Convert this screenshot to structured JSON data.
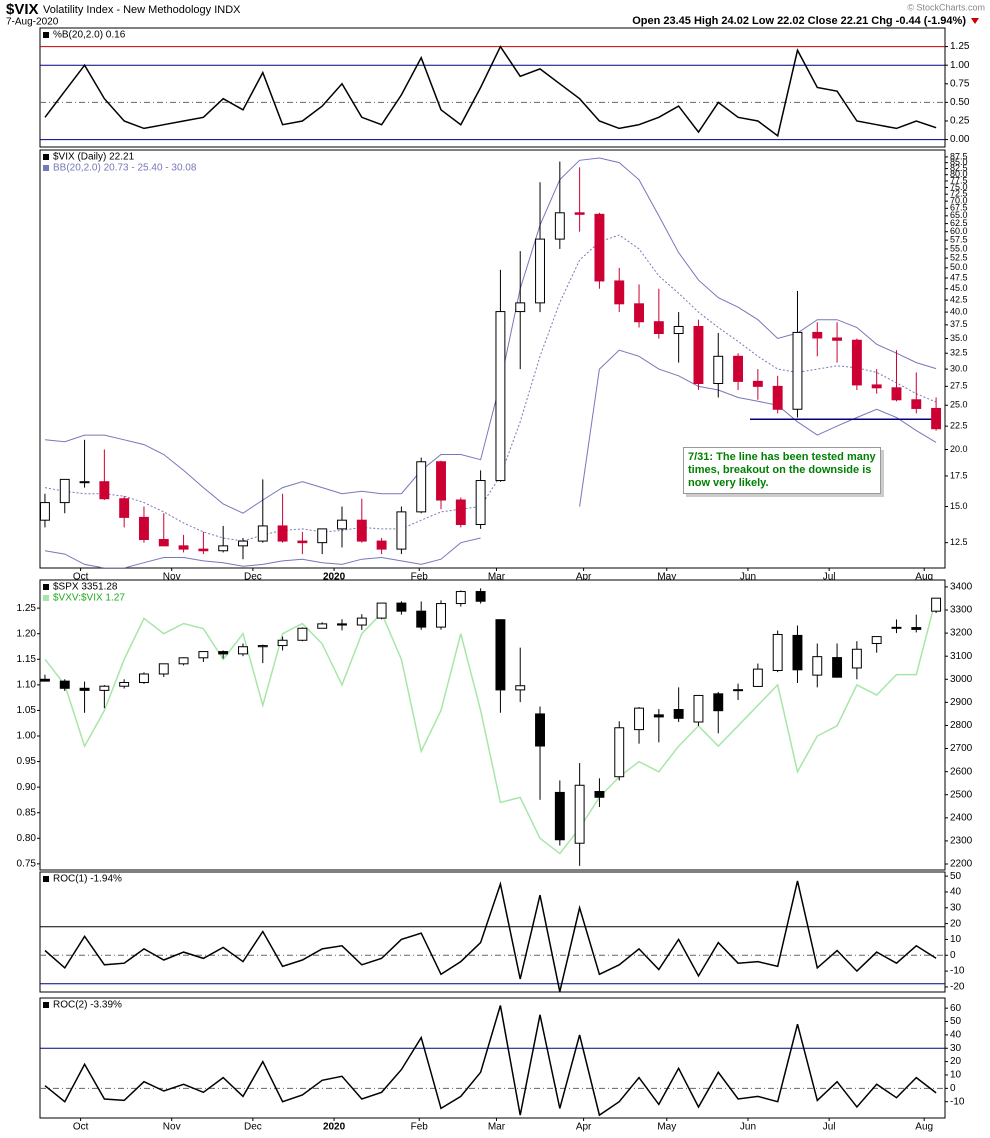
{
  "symbol": "$VIX",
  "title": "Volatility Index - New Methodology INDX",
  "date": "7-Aug-2020",
  "quote": "Open 23.45  High 24.02  Low 22.02  Close 22.21  Chg -0.44 (-1.94%)",
  "credit": "© StockCharts.com",
  "chart_data": [
    {
      "type": "line",
      "legend": [
        "%B(20,2.0) 0.16"
      ],
      "color": "#000000",
      "values": [
        0.3,
        0.65,
        1.0,
        0.55,
        0.25,
        0.15,
        0.2,
        0.25,
        0.3,
        0.55,
        0.4,
        0.9,
        0.2,
        0.25,
        0.45,
        0.75,
        0.3,
        0.2,
        0.6,
        1.1,
        0.4,
        0.2,
        0.7,
        1.25,
        0.85,
        0.95,
        0.75,
        0.55,
        0.25,
        0.15,
        0.2,
        0.3,
        0.45,
        0.1,
        0.5,
        0.3,
        0.25,
        0.05,
        1.2,
        0.7,
        0.65,
        0.25,
        0.2,
        0.15,
        0.25,
        0.16
      ],
      "xlim": [
        -0.25,
        45.45
      ],
      "ylim": [
        -0.1,
        1.5
      ],
      "yticks": [
        {
          "value": 0,
          "label": "0.00"
        },
        0.25,
        {
          "value": 0.5,
          "label": "0.50"
        },
        0.75,
        {
          "value": 1,
          "label": "1.00"
        },
        1.25
      ],
      "hlines": [
        {
          "value": 1.25,
          "color": "#cc0000"
        },
        {
          "value": 1,
          "color": "#000080"
        },
        {
          "value": 0.5,
          "color": "#666666",
          "dash": true
        },
        {
          "value": 0,
          "color": "#000080"
        }
      ]
    },
    {
      "type": "candlestick",
      "legend": [
        "$VIX (Daily) 22.21",
        "BB(20,2.0) 20.73 - 25.40 - 30.08"
      ],
      "up_color": "#000000",
      "down_color": "#cc0033",
      "log": true,
      "open": [
        14,
        15.3,
        17,
        17,
        15.6,
        14.2,
        12.7,
        12.3,
        12.1,
        12,
        12.3,
        12.6,
        13.6,
        12.6,
        12.5,
        13.4,
        14,
        12.6,
        12.1,
        14.6,
        18.8,
        15.5,
        13.7,
        17.1,
        40.1,
        41.9,
        57.8,
        66,
        65.5,
        46.8,
        41.7,
        38.1,
        35.9,
        37.2,
        27.9,
        32,
        28.2,
        27.5,
        24.5,
        36.1,
        35.1,
        34.7,
        27.7,
        27.3,
        25.7,
        24.6
      ],
      "high": [
        16,
        17.2,
        21,
        20,
        15.8,
        15,
        14.5,
        13,
        13.2,
        13.6,
        12.8,
        17.2,
        16,
        13.2,
        13.2,
        15,
        15.6,
        12.8,
        15,
        19.2,
        18.9,
        15.7,
        18,
        49.5,
        54.4,
        77,
        85.5,
        83,
        66,
        50,
        46,
        45,
        40,
        38.5,
        36,
        32.5,
        30,
        29,
        44.5,
        38,
        38,
        35,
        30,
        33,
        29.5,
        26
      ],
      "low": [
        13.5,
        14.5,
        16.5,
        15.5,
        13.5,
        12.5,
        12.3,
        11.9,
        11.8,
        11.9,
        11.5,
        12.5,
        12.5,
        11.8,
        11.8,
        12.2,
        12.5,
        11.8,
        11.8,
        14.5,
        14.8,
        13.5,
        13.4,
        17,
        30,
        40,
        55,
        60,
        45,
        40,
        37,
        35,
        31,
        27,
        26,
        27,
        25.7,
        24,
        23.5,
        32,
        31,
        27,
        26.5,
        25.5,
        24,
        22
      ],
      "close": [
        15.3,
        17.2,
        17,
        15.6,
        14.2,
        12.7,
        12.3,
        12.1,
        12,
        12.3,
        12.6,
        13.6,
        12.6,
        12.5,
        13.4,
        14,
        12.6,
        12.1,
        14.6,
        18.8,
        15.5,
        13.7,
        17.1,
        40.1,
        41.9,
        57.8,
        66,
        65.5,
        46.8,
        41.7,
        38.1,
        35.9,
        37.2,
        27.9,
        32,
        28.2,
        27.5,
        24.5,
        36.1,
        35.1,
        34.7,
        27.7,
        27.3,
        25.7,
        24.6,
        22.21
      ],
      "bands": {
        "color": "#7777bb",
        "upper": [
          21.0,
          20.8,
          21.5,
          21.5,
          21.0,
          20.5,
          19.5,
          18.0,
          16.5,
          15.2,
          14.5,
          15.5,
          16.5,
          17.0,
          16.5,
          16.0,
          16.2,
          16.0,
          16.0,
          18.0,
          19.5,
          19.5,
          19.0,
          28.0,
          45.0,
          62.0,
          78.0,
          86.0,
          87.0,
          85.0,
          78.0,
          65.0,
          54.0,
          47.0,
          43.0,
          41.0,
          38.5,
          35.0,
          36.0,
          38.5,
          38.5,
          37.0,
          34.0,
          32.5,
          31.0,
          30.08
        ],
        "middle": [
          16.5,
          16.2,
          16.0,
          16.0,
          15.8,
          15.3,
          14.6,
          13.8,
          13.2,
          12.8,
          12.6,
          13.0,
          13.3,
          13.4,
          13.2,
          13.3,
          13.5,
          13.4,
          13.4,
          14.0,
          14.6,
          14.8,
          15.0,
          17.5,
          23.0,
          32.0,
          42.0,
          52.0,
          57.0,
          59.0,
          55.0,
          48.0,
          44.0,
          40.0,
          37.0,
          34.5,
          32.0,
          30.0,
          29.5,
          30.0,
          30.5,
          30.2,
          29.5,
          28.0,
          26.5,
          25.4
        ],
        "lower": [
          12.0,
          11.8,
          11.2,
          11.0,
          11.0,
          11.3,
          11.6,
          11.6,
          11.4,
          11.3,
          11.1,
          11.2,
          11.4,
          11.5,
          11.3,
          11.2,
          11.5,
          11.6,
          11.4,
          11.2,
          11.5,
          12.5,
          12.8,
          null,
          null,
          null,
          null,
          15.0,
          30.0,
          33.0,
          32.0,
          30.0,
          29.0,
          27.5,
          27.0,
          26.0,
          25.5,
          25.0,
          23.0,
          21.5,
          22.5,
          23.5,
          24.5,
          23.5,
          22.0,
          20.73
        ]
      },
      "support": 23.3,
      "support_color": "#000080",
      "annotation": "7/31: The line has been tested many times, breakout on the downside is now very likely.",
      "xlim": [
        -0.25,
        45.45
      ],
      "ylim": [
        11,
        90.6
      ],
      "yticks": [
        12.5,
        {
          "value": 15,
          "label": "15.0"
        },
        17.5,
        {
          "value": 20,
          "label": "20.0"
        },
        22.5,
        {
          "value": 25,
          "label": "25.0"
        },
        27.5,
        {
          "value": 30,
          "label": "30.0"
        },
        32.5,
        {
          "value": 35,
          "label": "35.0"
        },
        37.5,
        {
          "value": 40,
          "label": "40.0"
        },
        42.5,
        {
          "value": 45,
          "label": "45.0"
        },
        47.5,
        {
          "value": 50,
          "label": "50.0"
        },
        52.5,
        {
          "value": 55,
          "label": "55.0"
        },
        57.5,
        {
          "value": 60,
          "label": "60.0"
        },
        62.5,
        {
          "value": 65,
          "label": "65.0"
        },
        67.5,
        {
          "value": 70,
          "label": "70.0"
        },
        72.5,
        {
          "value": 75,
          "label": "75.0"
        },
        77.5,
        {
          "value": 80,
          "label": "80.0"
        },
        82.5,
        {
          "value": 85,
          "label": "85.0"
        },
        87.5
      ],
      "xticks": [
        {
          "value": 1.8,
          "label": "Oct"
        },
        {
          "value": 6.4,
          "label": "Nov"
        },
        {
          "value": 10.5,
          "label": "Dec"
        },
        {
          "value": 14.6,
          "label": "2020"
        },
        {
          "value": 18.9,
          "label": "Feb"
        },
        {
          "value": 22.8,
          "label": "Mar"
        },
        {
          "value": 27.2,
          "label": "Apr"
        },
        {
          "value": 31.4,
          "label": "May"
        },
        {
          "value": 35.5,
          "label": "Jun"
        },
        {
          "value": 39.6,
          "label": "Jul"
        },
        {
          "value": 44.4,
          "label": "Aug"
        }
      ]
    },
    {
      "type": "candlestick",
      "legend": [
        "$SPX 3351.28",
        "$VXV:$VIX 1.27"
      ],
      "up_color": "#000000",
      "down_color": "#000000",
      "open": [
        3000,
        2992,
        2961,
        2952,
        2970,
        2986,
        3023,
        3067,
        3093,
        3120,
        3110,
        3141,
        3146,
        3169,
        3221,
        3240,
        3235,
        3265,
        3330,
        3295,
        3226,
        3328,
        3380,
        3258,
        2954,
        2850,
        2510,
        2290,
        2514,
        2578,
        2782,
        2846,
        2869,
        2815,
        2937,
        2953,
        2969,
        3038,
        3190,
        3018,
        3094,
        3049,
        3155,
        3225,
        3224,
        3295
      ],
      "high": [
        3020,
        3000,
        2990,
        2975,
        3000,
        3030,
        3067,
        3095,
        3120,
        3125,
        3155,
        3150,
        3185,
        3225,
        3247,
        3260,
        3282,
        3330,
        3338,
        3337,
        3342,
        3385,
        3394,
        3260,
        3137,
        2882,
        2562,
        2637,
        2571,
        2818,
        2880,
        2871,
        2965,
        2932,
        2945,
        2981,
        3068,
        3211,
        3233,
        3155,
        3155,
        3165,
        3186,
        3259,
        3280,
        3352
      ],
      "low": [
        2990,
        2950,
        2855,
        2875,
        2960,
        2980,
        3010,
        3060,
        3075,
        3090,
        3100,
        3070,
        3125,
        3165,
        3220,
        3212,
        3214,
        3260,
        3280,
        3214,
        3215,
        3315,
        3328,
        2855,
        2901,
        2478,
        2280,
        2192,
        2447,
        2562,
        2721,
        2727,
        2815,
        2798,
        2766,
        2910,
        2969,
        3031,
        2984,
        2965,
        3007,
        3000,
        3115,
        3200,
        3203,
        3287
      ],
      "close": [
        2992,
        2961,
        2952,
        2970,
        2986,
        3023,
        3067,
        3093,
        3120,
        3110,
        3141,
        3146,
        3169,
        3221,
        3240,
        3235,
        3265,
        3330,
        3295,
        3226,
        3328,
        3380,
        3338,
        2954,
        2972,
        2711,
        2305,
        2541,
        2489,
        2790,
        2875,
        2837,
        2831,
        2930,
        2864,
        2955,
        3044,
        3194,
        3041,
        3098,
        3009,
        3130,
        3185,
        3224,
        3216,
        3351.28
      ],
      "overlay": {
        "axis": "y2",
        "color": "#a8e6a8",
        "values": [
          1.15,
          1.1,
          0.98,
          1.05,
          1.15,
          1.23,
          1.2,
          1.22,
          1.21,
          1.15,
          1.2,
          1.06,
          1.2,
          1.22,
          1.18,
          1.1,
          1.2,
          1.24,
          1.15,
          0.97,
          1.05,
          1.2,
          1.05,
          0.87,
          0.88,
          0.8,
          0.77,
          0.82,
          0.88,
          0.92,
          0.95,
          0.93,
          0.98,
          1.02,
          0.98,
          1.02,
          1.06,
          1.1,
          0.93,
          1.0,
          1.02,
          1.1,
          1.08,
          1.12,
          1.12,
          1.27
        ]
      },
      "xlim": [
        -0.25,
        45.45
      ],
      "ylim": [
        2174,
        3430
      ],
      "yticks": [
        2200,
        2300,
        2400,
        2500,
        2600,
        2700,
        2800,
        2900,
        3000,
        3100,
        3200,
        3300,
        3400
      ],
      "y2lim": [
        0.738,
        1.305
      ],
      "y2ticks": [
        0.75,
        {
          "value": 0.8,
          "label": "0.80"
        },
        0.85,
        {
          "value": 0.9,
          "label": "0.90"
        },
        0.95,
        {
          "value": 1,
          "label": "1.00"
        },
        1.05,
        {
          "value": 1.1,
          "label": "1.10"
        },
        1.15,
        {
          "value": 1.2,
          "label": "1.20"
        },
        1.25
      ]
    },
    {
      "type": "line",
      "legend": [
        "ROC(1) -1.94%"
      ],
      "color": "#000000",
      "values": [
        3,
        -8,
        12,
        -6,
        -5,
        4,
        -3,
        2,
        -2,
        5,
        -4,
        15,
        -7,
        -3,
        4,
        6,
        -6,
        -2,
        10,
        14,
        -12,
        -4,
        8,
        45,
        -15,
        38,
        -23,
        30,
        -12,
        -6,
        4,
        -9,
        10,
        -13,
        8,
        -5,
        -4,
        -7,
        47,
        -8,
        3,
        -10,
        2,
        -5,
        6,
        -1.94
      ],
      "xlim": [
        -0.25,
        45.45
      ],
      "ylim": [
        -23.2,
        52.6
      ],
      "yticks": [
        -20,
        -10,
        0,
        10,
        20,
        30,
        40,
        50
      ],
      "hlines": [
        {
          "value": 18,
          "color": "#000000"
        },
        {
          "value": 0,
          "color": "#666666",
          "dash": true
        },
        {
          "value": -18,
          "color": "#000080"
        }
      ]
    },
    {
      "type": "line",
      "legend": [
        "ROC(2) -3.39%"
      ],
      "color": "#000000",
      "values": [
        2,
        -10,
        18,
        -8,
        -9,
        5,
        -2,
        3,
        -3,
        8,
        -6,
        20,
        -10,
        -5,
        6,
        9,
        -8,
        -3,
        14,
        38,
        -15,
        -6,
        12,
        62,
        -20,
        55,
        -15,
        40,
        -20,
        -10,
        8,
        -12,
        15,
        -14,
        12,
        -8,
        -6,
        -10,
        48,
        -9,
        5,
        -14,
        3,
        -7,
        8,
        -3.39
      ],
      "xlim": [
        -0.25,
        45.45
      ],
      "ylim": [
        -22.2,
        67.6
      ],
      "yticks": [
        -10,
        0,
        10,
        20,
        30,
        40,
        50,
        60
      ],
      "hlines": [
        {
          "value": 30,
          "color": "#000080"
        },
        {
          "value": 0,
          "color": "#666666",
          "dash": true
        }
      ],
      "xticks": [
        {
          "value": 1.8,
          "label": "Oct"
        },
        {
          "value": 6.4,
          "label": "Nov"
        },
        {
          "value": 10.5,
          "label": "Dec"
        },
        {
          "value": 14.6,
          "label": "2020"
        },
        {
          "value": 18.9,
          "label": "Feb"
        },
        {
          "value": 22.8,
          "label": "Mar"
        },
        {
          "value": 27.2,
          "label": "Apr"
        },
        {
          "value": 31.4,
          "label": "May"
        },
        {
          "value": 35.5,
          "label": "Jun"
        },
        {
          "value": 39.6,
          "label": "Jul"
        },
        {
          "value": 44.4,
          "label": "Aug"
        }
      ]
    }
  ]
}
